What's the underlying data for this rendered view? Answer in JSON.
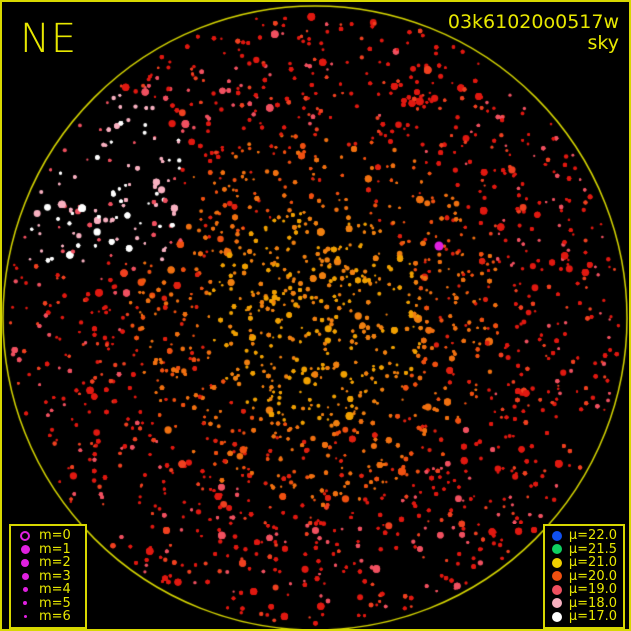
{
  "header": {
    "direction": "NE",
    "frame_id": "03k61020o0517w",
    "label": "sky"
  },
  "magnitude_legend": [
    {
      "label": "m=0",
      "size": 10,
      "style": "ring"
    },
    {
      "label": "m=1",
      "size": 9,
      "style": "filled"
    },
    {
      "label": "m=2",
      "size": 8,
      "style": "filled"
    },
    {
      "label": "m=3",
      "size": 7,
      "style": "filled"
    },
    {
      "label": "m=4",
      "size": 5,
      "style": "filled"
    },
    {
      "label": "m=5",
      "size": 4,
      "style": "filled"
    },
    {
      "label": "m=6",
      "size": 3,
      "style": "filled"
    }
  ],
  "magnitude_color": "#e020e0",
  "brightness_legend": [
    {
      "label": "μ=22.0",
      "color": "#1050f0"
    },
    {
      "label": "μ=21.5",
      "color": "#10d060"
    },
    {
      "label": "μ=21.0",
      "color": "#f0d000"
    },
    {
      "label": "μ=20.0",
      "color": "#f05010"
    },
    {
      "label": "μ=19.0",
      "color": "#f05060"
    },
    {
      "label": "μ=18.0",
      "color": "#f8b0c0"
    },
    {
      "label": "μ=17.0",
      "color": "#ffffff"
    }
  ],
  "colors": {
    "frame": "#d8d800",
    "horizon": "#d8d800",
    "text": "#e8e800",
    "background": "#000000"
  }
}
